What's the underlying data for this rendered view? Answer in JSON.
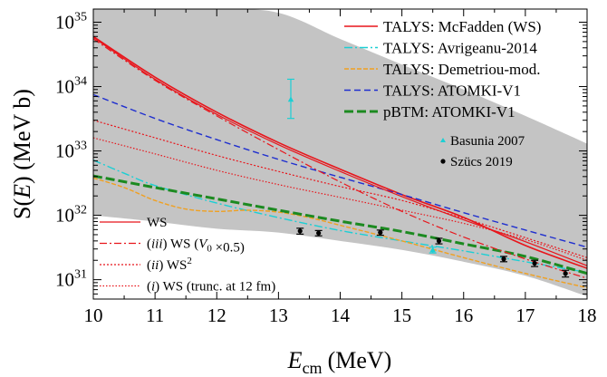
{
  "chart_data": {
    "type": "line",
    "title": "",
    "xlabel": {
      "main": "E",
      "sub": "cm",
      "unit": "(MeV)"
    },
    "ylabel": {
      "pre": "S(",
      "italic": "E",
      "post": ") (MeV b)"
    },
    "xlim": [
      10,
      18
    ],
    "ylim": [
      5e+30,
      1.6e+35
    ],
    "yscale": "log",
    "xticks": [
      10,
      11,
      12,
      13,
      14,
      15,
      16,
      17,
      18
    ],
    "yticks": [
      {
        "value": 1e+31,
        "base": "10",
        "exp": "31"
      },
      {
        "value": 1e+32,
        "base": "10",
        "exp": "32"
      },
      {
        "value": 1e+33,
        "base": "10",
        "exp": "33"
      },
      {
        "value": 1e+34,
        "base": "10",
        "exp": "34"
      },
      {
        "value": 1e+35,
        "base": "10",
        "exp": "35"
      }
    ],
    "band": {
      "x": [
        10,
        11,
        12,
        13,
        14,
        15,
        16,
        17,
        18
      ],
      "upper": [
        1.6e+35,
        1.6e+35,
        1.6e+35,
        1.4e+35,
        5.5e+34,
        2.2e+34,
        9e+33,
        3.5e+33,
        1.3e+33
      ],
      "lower": [
        1e+32,
        8e+31,
        6.2e+31,
        5.4e+31,
        4e+31,
        2.9e+31,
        1.9e+31,
        1.15e+31,
        5.5e+30
      ],
      "color": "#c4c4c4"
    },
    "series": [
      {
        "name": "TALYS: McFadden (WS)",
        "color": "#e8151b",
        "dash": "",
        "width": 1.6,
        "legend": "right",
        "x": [
          10,
          11,
          12,
          13,
          14,
          15,
          16,
          17,
          18
        ],
        "y": [
          6e+34,
          1.4e+34,
          4e+33,
          1.35e+33,
          5.2e+32,
          2.1e+32,
          9.3e+31,
          3.4e+31,
          1.5e+31
        ]
      },
      {
        "name": "TALYS: Avrigeanu-2014",
        "color": "#1ccfd4",
        "dash": "9,3,2,3",
        "width": 1.4,
        "legend": "right",
        "x": [
          10,
          10.5,
          11,
          12,
          13,
          14,
          15,
          16,
          17,
          18
        ],
        "y": [
          7.2e+32,
          4.5e+32,
          2.9e+32,
          1.55e+32,
          9.2e+31,
          5.8e+31,
          4e+31,
          2.8e+31,
          1.9e+31,
          1.3e+31
        ]
      },
      {
        "name": "TALYS: Demetriou-mod.",
        "color": "#f0a020",
        "dash": "5,2",
        "width": 1.4,
        "legend": "right",
        "x": [
          10,
          10.5,
          11,
          11.5,
          12,
          12.5,
          13,
          13.5,
          14,
          15,
          16,
          17,
          18
        ],
        "y": [
          3.8e+32,
          2.7e+32,
          1.7e+32,
          1.25e+32,
          1.15e+32,
          1.2e+32,
          1.12e+32,
          9.2e+31,
          7e+31,
          4e+31,
          2.2e+31,
          1.25e+31,
          7.5e+30
        ]
      },
      {
        "name": "TALYS: ATOMKI-V1",
        "color": "#1f2fcf",
        "dash": "7,4",
        "width": 1.4,
        "legend": "right",
        "x": [
          10,
          11,
          12,
          13,
          14,
          15,
          16,
          17,
          18
        ],
        "y": [
          7.5e+33,
          3.2e+33,
          1.5e+33,
          7.4e+32,
          3.9e+32,
          2.1e+32,
          1.1e+32,
          5.9e+31,
          3.2e+31
        ]
      },
      {
        "name": "pBTM: ATOMKI-V1",
        "color": "#1c8a20",
        "dash": "10,4",
        "width": 3,
        "legend": "right",
        "x": [
          10,
          11,
          12,
          13,
          14,
          15,
          16,
          17,
          18
        ],
        "y": [
          4.1e+32,
          2.7e+32,
          1.8e+32,
          1.2e+32,
          8.1e+31,
          5.6e+31,
          3.6e+31,
          2.3e+31,
          1.25e+31
        ]
      },
      {
        "name": "WS",
        "color": "#e8151b",
        "dash": "",
        "width": 1.2,
        "legend": "left",
        "label_parts": [
          {
            "t": "WS"
          }
        ],
        "x": [
          10,
          11,
          12,
          13,
          14,
          15,
          16,
          17,
          18
        ],
        "y": [
          5.8e+34,
          1.3e+34,
          3.7e+33,
          1.25e+33,
          4.8e+32,
          1.95e+32,
          8.5e+31,
          3.9e+31,
          1.65e+31
        ]
      },
      {
        "name": "(iii) WS (V0 ×0.5)",
        "color": "#e8151b",
        "dash": "8,3,2,3",
        "width": 1.2,
        "legend": "left",
        "label_parts": [
          {
            "t": "("
          },
          {
            "t": "iii",
            "i": true
          },
          {
            "t": ") WS ("
          },
          {
            "t": "V",
            "i": true
          },
          {
            "t": "0",
            "sub": true
          },
          {
            "t": " ×0.5)"
          }
        ],
        "x": [
          10,
          11,
          12,
          13,
          14,
          15,
          16,
          17,
          18
        ],
        "y": [
          5.5e+34,
          1.25e+34,
          3.5e+33,
          1.05e+33,
          3.3e+32,
          1.15e+32,
          4.6e+31,
          2.1e+31,
          1.05e+31
        ]
      },
      {
        "name": "(ii) WS2",
        "color": "#e8151b",
        "dash": "2,2",
        "width": 1.2,
        "legend": "left",
        "label_parts": [
          {
            "t": "("
          },
          {
            "t": "ii",
            "i": true
          },
          {
            "t": ") WS"
          },
          {
            "t": "2",
            "sup": true
          }
        ],
        "x": [
          10,
          11,
          12,
          13,
          14,
          15,
          16,
          17,
          18
        ],
        "y": [
          3e+33,
          1.6e+33,
          8.5e+32,
          4.8e+32,
          2.8e+32,
          1.7e+32,
          9e+31,
          4.5e+31,
          2.2e+31
        ]
      },
      {
        "name": "(i) WS (trunc. at 12 fm)",
        "color": "#e8151b",
        "dash": "1.5,2",
        "width": 1.2,
        "legend": "left",
        "label_parts": [
          {
            "t": "("
          },
          {
            "t": "i",
            "i": true
          },
          {
            "t": ") WS (trunc. at 12 fm)"
          }
        ],
        "x": [
          10,
          11,
          12,
          13,
          14,
          15,
          16,
          17,
          18
        ],
        "y": [
          1.6e+33,
          9e+32,
          5e+32,
          3e+32,
          1.9e+32,
          1.2e+32,
          7.5e+31,
          4.2e+31,
          2e+31
        ]
      }
    ],
    "points": [
      {
        "name": "Basunia 2007",
        "color": "#1ccfd4",
        "marker": "triangle",
        "legend": "right",
        "data": [
          {
            "x": 13.2,
            "y": 6.3e+33,
            "ylo": 3.2e+33,
            "yhi": 1.3e+34
          },
          {
            "x": 15.5,
            "y": 2.9e+31,
            "ylo": 2.6e+31,
            "yhi": 3.2e+31
          }
        ]
      },
      {
        "name": "Szücs 2019",
        "color": "#000000",
        "marker": "circle",
        "legend": "right",
        "data": [
          {
            "x": 13.35,
            "y": 5.7e+31,
            "ylo": 5.1e+31,
            "yhi": 6.3e+31
          },
          {
            "x": 13.65,
            "y": 5.3e+31,
            "ylo": 4.8e+31,
            "yhi": 5.8e+31
          },
          {
            "x": 14.65,
            "y": 5.4e+31,
            "ylo": 4.9e+31,
            "yhi": 5.9e+31
          },
          {
            "x": 15.6,
            "y": 4e+31,
            "ylo": 3.6e+31,
            "yhi": 4.4e+31
          },
          {
            "x": 16.65,
            "y": 2.1e+31,
            "ylo": 1.9e+31,
            "yhi": 2.3e+31
          },
          {
            "x": 17.15,
            "y": 1.8e+31,
            "ylo": 1.6e+31,
            "yhi": 2e+31
          },
          {
            "x": 17.65,
            "y": 1.25e+31,
            "ylo": 1.1e+31,
            "yhi": 1.4e+31
          }
        ]
      }
    ],
    "legend_positions": {
      "right": "top-right",
      "left": "bottom-left"
    }
  }
}
